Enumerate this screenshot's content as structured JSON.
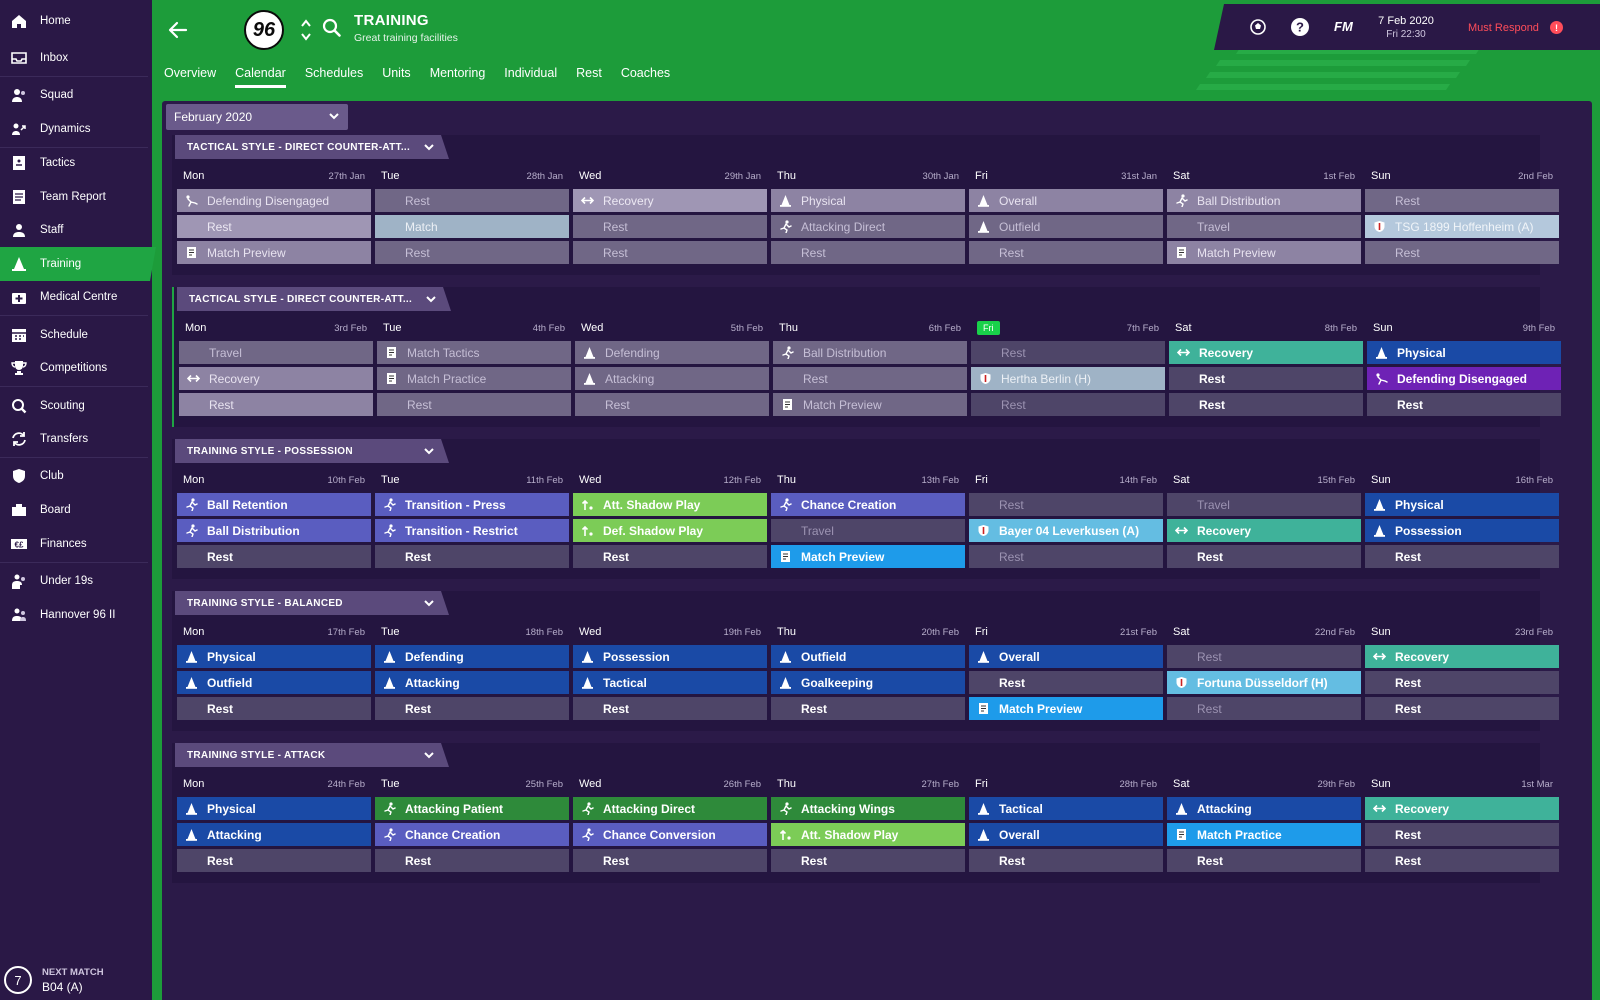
{
  "sidebar": {
    "items": [
      {
        "label": "Home",
        "icon": "home-icon"
      },
      {
        "label": "Inbox",
        "icon": "inbox-icon"
      },
      {
        "label": "Squad",
        "icon": "squad-icon"
      },
      {
        "label": "Dynamics",
        "icon": "dynamics-icon"
      },
      {
        "label": "Tactics",
        "icon": "tactics-icon"
      },
      {
        "label": "Team Report",
        "icon": "report-icon"
      },
      {
        "label": "Staff",
        "icon": "staff-icon"
      },
      {
        "label": "Training",
        "icon": "training-icon",
        "active": true
      },
      {
        "label": "Medical Centre",
        "icon": "medical-icon"
      },
      {
        "label": "Schedule",
        "icon": "calendar-icon"
      },
      {
        "label": "Competitions",
        "icon": "trophy-icon"
      },
      {
        "label": "Scouting",
        "icon": "search-icon"
      },
      {
        "label": "Transfers",
        "icon": "transfers-icon"
      },
      {
        "label": "Club",
        "icon": "shield-icon"
      },
      {
        "label": "Board",
        "icon": "board-icon"
      },
      {
        "label": "Finances",
        "icon": "finances-icon"
      },
      {
        "label": "Under 19s",
        "icon": "youth-icon"
      },
      {
        "label": "Hannover 96 II",
        "icon": "reserve-icon"
      }
    ],
    "next_match": {
      "title": "NEXT MATCH",
      "value": "B04 (A)",
      "number": "7"
    }
  },
  "header": {
    "badge": "96",
    "title": "TRAINING",
    "subtitle": "Great training facilities",
    "tabs": [
      "Overview",
      "Calendar",
      "Schedules",
      "Units",
      "Mentoring",
      "Individual",
      "Rest",
      "Coaches"
    ],
    "active_tab": "Calendar"
  },
  "topbar": {
    "fm": "FM",
    "date": "7 Feb 2020",
    "time": "Fri 22:30",
    "must_respond": "Must Respond",
    "alert": "!"
  },
  "month": "February 2020",
  "weeks": [
    {
      "style": "TACTICAL STYLE - DIRECT COUNTER-ATT...",
      "days": [
        {
          "name": "Mon",
          "date": "27th Jan",
          "slots": [
            {
              "label": "Defending Disengaged",
              "t": "t-grey",
              "icon": "defending-icon"
            },
            {
              "label": "Rest",
              "t": "t-lgrey"
            },
            {
              "label": "Match Preview",
              "t": "t-grey",
              "icon": "preview-icon"
            }
          ]
        },
        {
          "name": "Tue",
          "date": "28th Jan",
          "slots": [
            {
              "label": "Rest",
              "t": "t-grey-dim"
            },
            {
              "label": "Match",
              "t": "t-lightblue"
            },
            {
              "label": "Rest",
              "t": "t-grey-dim"
            }
          ]
        },
        {
          "name": "Wed",
          "date": "29th Jan",
          "slots": [
            {
              "label": "Recovery",
              "t": "t-lgrey",
              "icon": "recovery-icon"
            },
            {
              "label": "Rest",
              "t": "t-grey-dim"
            },
            {
              "label": "Rest",
              "t": "t-grey-dim"
            }
          ]
        },
        {
          "name": "Thu",
          "date": "30th Jan",
          "slots": [
            {
              "label": "Physical",
              "t": "t-grey",
              "icon": "cone-icon"
            },
            {
              "label": "Attacking Direct",
              "t": "t-grey-dim",
              "icon": "runner-icon"
            },
            {
              "label": "Rest",
              "t": "t-grey-dim"
            }
          ]
        },
        {
          "name": "Fri",
          "date": "31st Jan",
          "slots": [
            {
              "label": "Overall",
              "t": "t-grey",
              "icon": "cone-icon"
            },
            {
              "label": "Outfield",
              "t": "t-grey-dim",
              "icon": "cone-icon"
            },
            {
              "label": "Rest",
              "t": "t-grey-dim"
            }
          ]
        },
        {
          "name": "Sat",
          "date": "1st Feb",
          "slots": [
            {
              "label": "Ball Distribution",
              "t": "t-grey",
              "icon": "runner-icon"
            },
            {
              "label": "Travel",
              "t": "t-grey-dim"
            },
            {
              "label": "Match Preview",
              "t": "t-grey",
              "icon": "preview-icon"
            }
          ]
        },
        {
          "name": "Sun",
          "date": "2nd Feb",
          "slots": [
            {
              "label": "Rest",
              "t": "t-grey-dim"
            },
            {
              "label": "TSG 1899 Hoffenheim (A)",
              "t": "t-match-lb",
              "icon": "crest-icon"
            },
            {
              "label": "Rest",
              "t": "t-grey-dim"
            }
          ]
        }
      ]
    },
    {
      "style": "TACTICAL STYLE - DIRECT COUNTER-ATT...",
      "current": true,
      "days": [
        {
          "name": "Mon",
          "date": "3rd Feb",
          "slots": [
            {
              "label": "Travel",
              "t": "t-grey-dim"
            },
            {
              "label": "Recovery",
              "t": "t-grey",
              "icon": "recovery-icon"
            },
            {
              "label": "Rest",
              "t": "t-grey"
            }
          ]
        },
        {
          "name": "Tue",
          "date": "4th Feb",
          "slots": [
            {
              "label": "Match Tactics",
              "t": "t-grey-dim",
              "icon": "preview-icon"
            },
            {
              "label": "Match Practice",
              "t": "t-grey-dim",
              "icon": "preview-icon"
            },
            {
              "label": "Rest",
              "t": "t-grey-dim"
            }
          ]
        },
        {
          "name": "Wed",
          "date": "5th Feb",
          "slots": [
            {
              "label": "Defending",
              "t": "t-grey-dim",
              "icon": "cone-icon"
            },
            {
              "label": "Attacking",
              "t": "t-grey-dim",
              "icon": "cone-icon"
            },
            {
              "label": "Rest",
              "t": "t-grey-dim"
            }
          ]
        },
        {
          "name": "Thu",
          "date": "6th Feb",
          "slots": [
            {
              "label": "Ball Distribution",
              "t": "t-grey-dim",
              "icon": "runner-icon"
            },
            {
              "label": "Rest",
              "t": "t-grey-dim"
            },
            {
              "label": "Match Preview",
              "t": "t-grey-dim",
              "icon": "preview-icon"
            }
          ]
        },
        {
          "name": "Fri",
          "today": true,
          "date": "7th Feb",
          "slots": [
            {
              "label": "Rest",
              "t": "t-rest-dim"
            },
            {
              "label": "Hertha Berlin (H)",
              "t": "t-lightblue",
              "icon": "crest-icon"
            },
            {
              "label": "Rest",
              "t": "t-rest-dim"
            }
          ]
        },
        {
          "name": "Sat",
          "date": "8th Feb",
          "slots": [
            {
              "label": "Recovery",
              "t": "t-teal",
              "icon": "recovery-icon"
            },
            {
              "label": "Rest",
              "t": "t-rest"
            },
            {
              "label": "Rest",
              "t": "t-rest"
            }
          ]
        },
        {
          "name": "Sun",
          "date": "9th Feb",
          "slots": [
            {
              "label": "Physical",
              "t": "t-blue",
              "icon": "cone-icon"
            },
            {
              "label": "Defending Disengaged",
              "t": "t-purple",
              "icon": "defending-icon"
            },
            {
              "label": "Rest",
              "t": "t-rest"
            }
          ]
        }
      ]
    },
    {
      "style": "TRAINING STYLE - POSSESSION",
      "days": [
        {
          "name": "Mon",
          "date": "10th Feb",
          "slots": [
            {
              "label": "Ball Retention",
              "t": "t-periw",
              "icon": "runner-icon"
            },
            {
              "label": "Ball Distribution",
              "t": "t-periw",
              "icon": "runner-icon"
            },
            {
              "label": "Rest",
              "t": "t-rest"
            }
          ]
        },
        {
          "name": "Tue",
          "date": "11th Feb",
          "slots": [
            {
              "label": "Transition - Press",
              "t": "t-periw",
              "icon": "runner-icon"
            },
            {
              "label": "Transition - Restrict",
              "t": "t-periw",
              "icon": "runner-icon"
            },
            {
              "label": "Rest",
              "t": "t-rest"
            }
          ]
        },
        {
          "name": "Wed",
          "date": "12th Feb",
          "slots": [
            {
              "label": "Att. Shadow Play",
              "t": "t-lime",
              "icon": "shadow-icon"
            },
            {
              "label": "Def. Shadow Play",
              "t": "t-lime",
              "icon": "shadow-icon"
            },
            {
              "label": "Rest",
              "t": "t-rest"
            }
          ]
        },
        {
          "name": "Thu",
          "date": "13th Feb",
          "slots": [
            {
              "label": "Chance Creation",
              "t": "t-periw",
              "icon": "runner-icon"
            },
            {
              "label": "Travel",
              "t": "t-rest-dim"
            },
            {
              "label": "Match Preview",
              "t": "t-bright",
              "icon": "preview-icon"
            }
          ]
        },
        {
          "name": "Fri",
          "date": "14th Feb",
          "slots": [
            {
              "label": "Rest",
              "t": "t-rest-dim"
            },
            {
              "label": "Bayer 04 Leverkusen (A)",
              "t": "t-sky",
              "icon": "crest-icon"
            },
            {
              "label": "Rest",
              "t": "t-rest-dim"
            }
          ]
        },
        {
          "name": "Sat",
          "date": "15th Feb",
          "slots": [
            {
              "label": "Travel",
              "t": "t-rest-dim"
            },
            {
              "label": "Recovery",
              "t": "t-teal",
              "icon": "recovery-icon"
            },
            {
              "label": "Rest",
              "t": "t-rest"
            }
          ]
        },
        {
          "name": "Sun",
          "date": "16th Feb",
          "slots": [
            {
              "label": "Physical",
              "t": "t-blue",
              "icon": "cone-icon"
            },
            {
              "label": "Possession",
              "t": "t-blue",
              "icon": "cone-icon"
            },
            {
              "label": "Rest",
              "t": "t-rest"
            }
          ]
        }
      ]
    },
    {
      "style": "TRAINING STYLE - BALANCED",
      "days": [
        {
          "name": "Mon",
          "date": "17th Feb",
          "slots": [
            {
              "label": "Physical",
              "t": "t-blue",
              "icon": "cone-icon"
            },
            {
              "label": "Outfield",
              "t": "t-blue",
              "icon": "cone-icon"
            },
            {
              "label": "Rest",
              "t": "t-rest"
            }
          ]
        },
        {
          "name": "Tue",
          "date": "18th Feb",
          "slots": [
            {
              "label": "Defending",
              "t": "t-blue",
              "icon": "cone-icon"
            },
            {
              "label": "Attacking",
              "t": "t-blue",
              "icon": "cone-icon"
            },
            {
              "label": "Rest",
              "t": "t-rest"
            }
          ]
        },
        {
          "name": "Wed",
          "date": "19th Feb",
          "slots": [
            {
              "label": "Possession",
              "t": "t-blue",
              "icon": "cone-icon"
            },
            {
              "label": "Tactical",
              "t": "t-blue",
              "icon": "cone-icon"
            },
            {
              "label": "Rest",
              "t": "t-rest"
            }
          ]
        },
        {
          "name": "Thu",
          "date": "20th Feb",
          "slots": [
            {
              "label": "Outfield",
              "t": "t-blue",
              "icon": "cone-icon"
            },
            {
              "label": "Goalkeeping",
              "t": "t-blue",
              "icon": "cone-icon"
            },
            {
              "label": "Rest",
              "t": "t-rest"
            }
          ]
        },
        {
          "name": "Fri",
          "date": "21st Feb",
          "slots": [
            {
              "label": "Overall",
              "t": "t-blue",
              "icon": "cone-icon"
            },
            {
              "label": "Rest",
              "t": "t-rest"
            },
            {
              "label": "Match Preview",
              "t": "t-bright",
              "icon": "preview-icon"
            }
          ]
        },
        {
          "name": "Sat",
          "date": "22nd Feb",
          "slots": [
            {
              "label": "Rest",
              "t": "t-rest-dim"
            },
            {
              "label": "Fortuna Düsseldorf (H)",
              "t": "t-sky",
              "icon": "crest-icon"
            },
            {
              "label": "Rest",
              "t": "t-rest-dim"
            }
          ]
        },
        {
          "name": "Sun",
          "date": "23rd Feb",
          "slots": [
            {
              "label": "Recovery",
              "t": "t-teal",
              "icon": "recovery-icon"
            },
            {
              "label": "Rest",
              "t": "t-rest"
            },
            {
              "label": "Rest",
              "t": "t-rest"
            }
          ]
        }
      ]
    },
    {
      "style": "TRAINING STYLE - ATTACK",
      "days": [
        {
          "name": "Mon",
          "date": "24th Feb",
          "slots": [
            {
              "label": "Physical",
              "t": "t-blue",
              "icon": "cone-icon"
            },
            {
              "label": "Attacking",
              "t": "t-blue",
              "icon": "cone-icon"
            },
            {
              "label": "Rest",
              "t": "t-rest"
            }
          ]
        },
        {
          "name": "Tue",
          "date": "25th Feb",
          "slots": [
            {
              "label": "Attacking Patient",
              "t": "t-green",
              "icon": "runner-icon"
            },
            {
              "label": "Chance Creation",
              "t": "t-periw",
              "icon": "runner-icon"
            },
            {
              "label": "Rest",
              "t": "t-rest"
            }
          ]
        },
        {
          "name": "Wed",
          "date": "26th Feb",
          "slots": [
            {
              "label": "Attacking Direct",
              "t": "t-green",
              "icon": "runner-icon"
            },
            {
              "label": "Chance Conversion",
              "t": "t-periw",
              "icon": "runner-icon"
            },
            {
              "label": "Rest",
              "t": "t-rest"
            }
          ]
        },
        {
          "name": "Thu",
          "date": "27th Feb",
          "slots": [
            {
              "label": "Attacking Wings",
              "t": "t-green",
              "icon": "runner-icon"
            },
            {
              "label": "Att. Shadow Play",
              "t": "t-lime",
              "icon": "shadow-icon"
            },
            {
              "label": "Rest",
              "t": "t-rest"
            }
          ]
        },
        {
          "name": "Fri",
          "date": "28th Feb",
          "slots": [
            {
              "label": "Tactical",
              "t": "t-blue",
              "icon": "cone-icon"
            },
            {
              "label": "Overall",
              "t": "t-blue",
              "icon": "cone-icon"
            },
            {
              "label": "Rest",
              "t": "t-rest"
            }
          ]
        },
        {
          "name": "Sat",
          "date": "29th Feb",
          "slots": [
            {
              "label": "Attacking",
              "t": "t-blue",
              "icon": "cone-icon"
            },
            {
              "label": "Match Practice",
              "t": "t-bright",
              "icon": "preview-icon"
            },
            {
              "label": "Rest",
              "t": "t-rest"
            }
          ]
        },
        {
          "name": "Sun",
          "date": "1st Mar",
          "slots": [
            {
              "label": "Recovery",
              "t": "t-teal",
              "icon": "recovery-icon"
            },
            {
              "label": "Rest",
              "t": "t-rest"
            },
            {
              "label": "Rest",
              "t": "t-rest"
            }
          ]
        }
      ]
    }
  ]
}
